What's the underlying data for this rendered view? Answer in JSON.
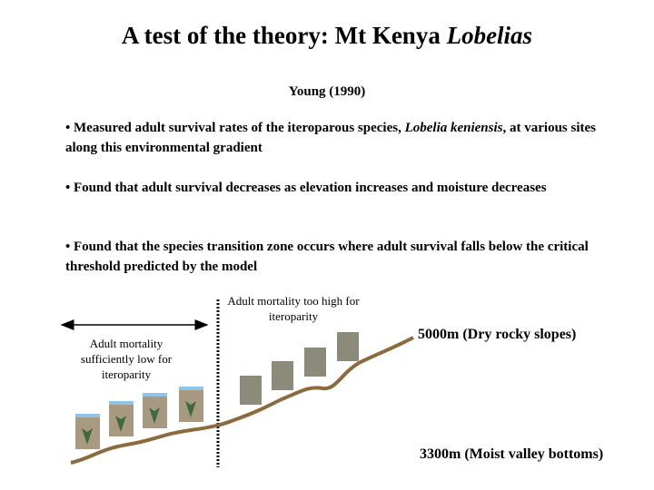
{
  "title": [
    "A test of the theory: Mt Kenya",
    "Lobelias"
  ],
  "citation": "Young (1990)",
  "bullets": [
    [
      "• Measured adult survival rates of the iteroparous species,",
      "Lobelia keniensis",
      ", at various sites along this environmental gradient"
    ],
    [
      "• Found that adult survival decreases as elevation increases and moisture decreases"
    ],
    [
      "• Found that the species transition zone occurs where adult survival falls below the critical threshold predicted by the model"
    ]
  ],
  "diagram": {
    "high_mortality_label": "Adult mortality too high for iteroparity",
    "low_mortality_label": "Adult mortality sufficiently low for iteroparity",
    "top_label": "5000m (Dry rocky slopes)",
    "bottom_label": "3300m (Moist valley bottoms)"
  }
}
